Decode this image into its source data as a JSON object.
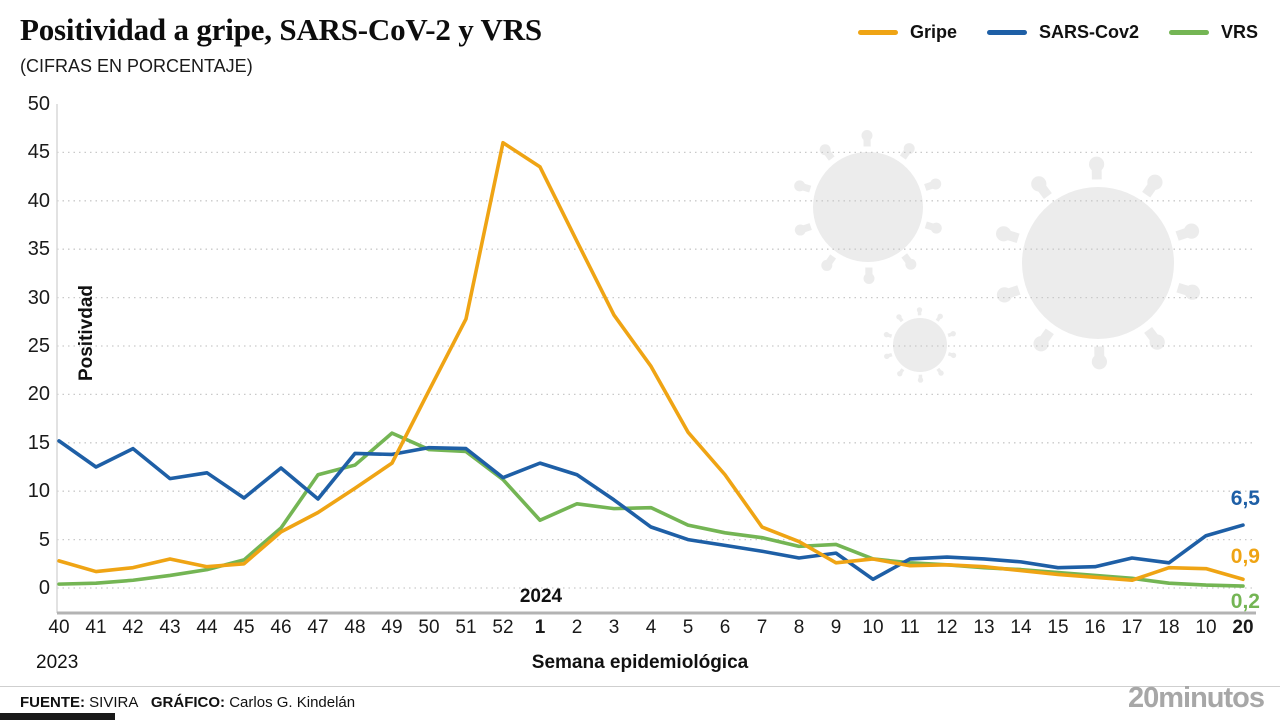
{
  "header": {
    "title": "Positividad a gripe, SARS-CoV-2 y VRS",
    "subtitle": "(CIFRAS EN PORCENTAJE)"
  },
  "legend": {
    "items": [
      {
        "label": "Gripe",
        "color": "#efa414"
      },
      {
        "label": "SARS-Cov2",
        "color": "#1e5fa6"
      },
      {
        "label": "VRS",
        "color": "#74b554"
      }
    ]
  },
  "chart_data": {
    "type": "line",
    "title": "Positividad a gripe, SARS-CoV-2 y VRS",
    "subtitle": "(CIFRAS EN PORCENTAJE)",
    "xlabel": "Semana epidemiológica",
    "ylabel": "Positivdad",
    "ylim": [
      0,
      50
    ],
    "yticks": [
      0,
      5,
      10,
      15,
      20,
      25,
      30,
      35,
      40,
      45,
      50
    ],
    "grid": "horizontal-dotted",
    "legend_position": "top-right",
    "year_start": "2023",
    "year_change": "2024",
    "x_labels": [
      "40",
      "41",
      "42",
      "43",
      "44",
      "45",
      "46",
      "47",
      "48",
      "49",
      "50",
      "51",
      "52",
      "1",
      "2",
      "3",
      "4",
      "5",
      "6",
      "7",
      "8",
      "9",
      "10",
      "11",
      "12",
      "13",
      "14",
      "15",
      "16",
      "17",
      "18",
      "10",
      "20"
    ],
    "bold_x_indices": [
      13,
      32
    ],
    "series": [
      {
        "name": "Gripe",
        "color": "#efa414",
        "values": [
          2.8,
          1.7,
          2.1,
          3.0,
          2.2,
          2.5,
          5.8,
          7.8,
          10.3,
          12.9,
          20.4,
          27.8,
          46.0,
          43.5,
          35.8,
          28.2,
          22.9,
          16.1,
          11.7,
          6.3,
          4.8,
          2.6,
          3.0,
          2.3,
          2.4,
          2.2,
          1.8,
          1.4,
          1.1,
          0.8,
          2.1,
          2.0,
          0.9
        ]
      },
      {
        "name": "SARS-Cov2",
        "color": "#1e5fa6",
        "values": [
          15.2,
          12.5,
          14.4,
          11.3,
          11.9,
          9.3,
          12.4,
          9.2,
          13.9,
          13.8,
          14.5,
          14.4,
          11.4,
          12.9,
          11.7,
          9.1,
          6.3,
          5.0,
          4.4,
          3.8,
          3.1,
          3.6,
          0.9,
          3.0,
          3.2,
          3.0,
          2.7,
          2.1,
          2.2,
          3.1,
          2.6,
          5.4,
          6.5
        ]
      },
      {
        "name": "VRS",
        "color": "#74b554",
        "values": [
          0.4,
          0.5,
          0.8,
          1.3,
          1.9,
          2.9,
          6.2,
          11.7,
          12.7,
          16.0,
          14.3,
          14.1,
          11.2,
          7.0,
          8.7,
          8.2,
          8.3,
          6.5,
          5.7,
          5.2,
          4.3,
          4.5,
          3.0,
          2.6,
          2.4,
          2.1,
          1.9,
          1.6,
          1.3,
          1.0,
          0.5,
          0.3,
          0.2
        ]
      }
    ],
    "end_labels": [
      {
        "text": "6,5",
        "series": "SARS-Cov2",
        "color": "#1e5fa6"
      },
      {
        "text": "0,9",
        "series": "Gripe",
        "color": "#efa414"
      },
      {
        "text": "0,2",
        "series": "VRS",
        "color": "#74b554"
      }
    ]
  },
  "decorations": {
    "watermark_icon": "coronavirus-watermark-icon"
  },
  "footer": {
    "source_label": "FUENTE:",
    "source": "SIVIRA",
    "credit_label": "GRÁFICO:",
    "credit": "Carlos G. Kindelán",
    "brand": "20minutos"
  }
}
